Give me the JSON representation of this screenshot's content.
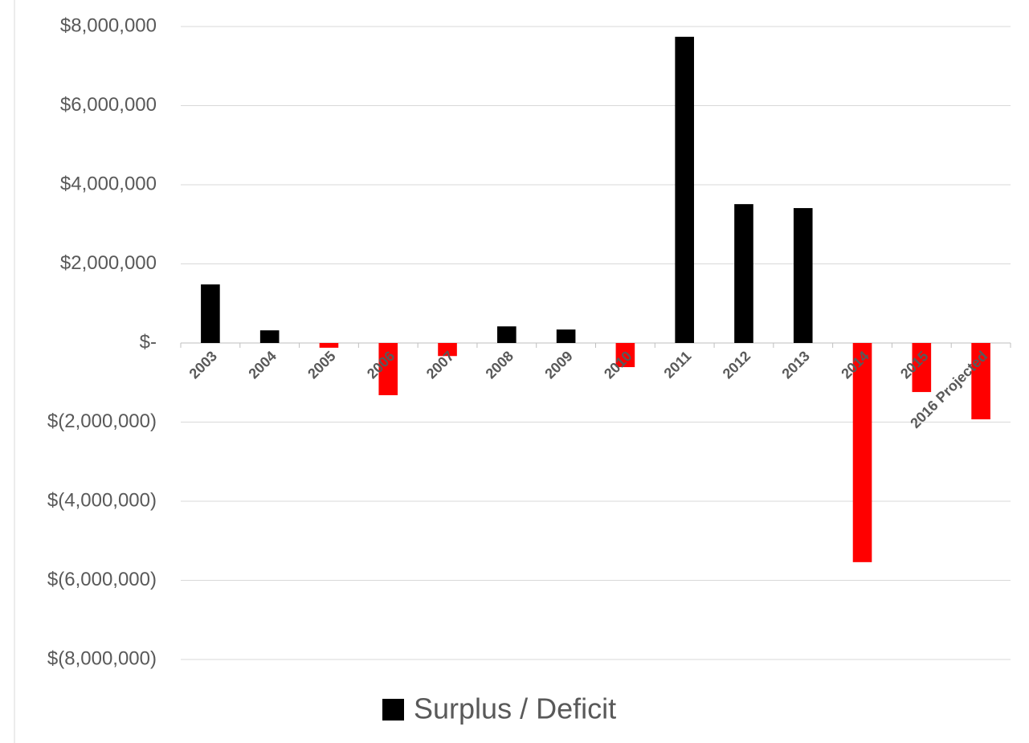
{
  "chart_data": {
    "type": "bar",
    "categories": [
      "2003",
      "2004",
      "2005",
      "2006",
      "2007",
      "2008",
      "2009",
      "2010",
      "2011",
      "2012",
      "2013",
      "2014",
      "2015",
      "2016 Projected"
    ],
    "series": [
      {
        "name": "Surplus / Deficit",
        "color": "#000000",
        "negative_color": "#ff0000",
        "values": [
          1480000,
          320000,
          -120000,
          -1320000,
          -330000,
          420000,
          340000,
          -610000,
          7740000,
          3510000,
          3410000,
          -5540000,
          -1240000,
          -1930000
        ]
      }
    ],
    "ylim": [
      -8000000,
      8000000
    ],
    "yticks": [
      {
        "value": -8000000,
        "label": "$(8,000,000)"
      },
      {
        "value": -6000000,
        "label": "$(6,000,000)"
      },
      {
        "value": -4000000,
        "label": "$(4,000,000)"
      },
      {
        "value": -2000000,
        "label": "$(2,000,000)"
      },
      {
        "value": 0,
        "label": "$-"
      },
      {
        "value": 2000000,
        "label": "$2,000,000"
      },
      {
        "value": 4000000,
        "label": "$4,000,000"
      },
      {
        "value": 6000000,
        "label": "$6,000,000"
      },
      {
        "value": 8000000,
        "label": "$8,000,000"
      }
    ],
    "grid": true,
    "legend": "bottom"
  }
}
